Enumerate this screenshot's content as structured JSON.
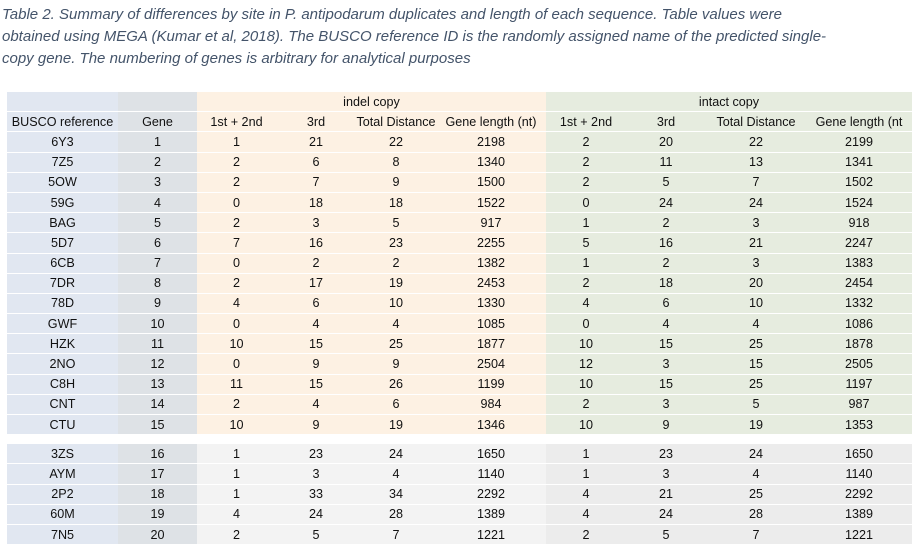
{
  "caption": {
    "line1": "Table 2. Summary of differences by site in P. antipodarum duplicates and length of each sequence. Table values were",
    "line2": "obtained using MEGA (Kumar et al, 2018). The BUSCO reference ID is the randomly assigned name of the predicted single-",
    "line3": "copy gene. The numbering of genes is arbitrary for analytical purposes"
  },
  "table": {
    "group_headers": {
      "indel": "indel copy",
      "intact": "intact copy"
    },
    "columns": [
      "BUSCO reference",
      "Gene",
      "1st + 2nd",
      "3rd",
      "Total Distance",
      "Gene length (nt)",
      "1st + 2nd",
      "3rd",
      "Total Distance",
      "Gene length (nt"
    ],
    "rows_a": [
      [
        "6Y3",
        "1",
        "1",
        "21",
        "22",
        "2198",
        "2",
        "20",
        "22",
        "2199"
      ],
      [
        "7Z5",
        "2",
        "2",
        "6",
        "8",
        "1340",
        "2",
        "11",
        "13",
        "1341"
      ],
      [
        "5OW",
        "3",
        "2",
        "7",
        "9",
        "1500",
        "2",
        "5",
        "7",
        "1502"
      ],
      [
        "59G",
        "4",
        "0",
        "18",
        "18",
        "1522",
        "0",
        "24",
        "24",
        "1524"
      ],
      [
        "BAG",
        "5",
        "2",
        "3",
        "5",
        "917",
        "1",
        "2",
        "3",
        "918"
      ],
      [
        "5D7",
        "6",
        "7",
        "16",
        "23",
        "2255",
        "5",
        "16",
        "21",
        "2247"
      ],
      [
        "6CB",
        "7",
        "0",
        "2",
        "2",
        "1382",
        "1",
        "2",
        "3",
        "1383"
      ],
      [
        "7DR",
        "8",
        "2",
        "17",
        "19",
        "2453",
        "2",
        "18",
        "20",
        "2454"
      ],
      [
        "78D",
        "9",
        "4",
        "6",
        "10",
        "1330",
        "4",
        "6",
        "10",
        "1332"
      ],
      [
        "GWF",
        "10",
        "0",
        "4",
        "4",
        "1085",
        "0",
        "4",
        "4",
        "1086"
      ],
      [
        "HZK",
        "11",
        "10",
        "15",
        "25",
        "1877",
        "10",
        "15",
        "25",
        "1878"
      ],
      [
        "2NO",
        "12",
        "0",
        "9",
        "9",
        "2504",
        "12",
        "3",
        "15",
        "2505"
      ],
      [
        "C8H",
        "13",
        "11",
        "15",
        "26",
        "1199",
        "10",
        "15",
        "25",
        "1197"
      ],
      [
        "CNT",
        "14",
        "2",
        "4",
        "6",
        "984",
        "2",
        "3",
        "5",
        "987"
      ],
      [
        "CTU",
        "15",
        "10",
        "9",
        "19",
        "1346",
        "10",
        "9",
        "19",
        "1353"
      ]
    ],
    "rows_b": [
      [
        "3ZS",
        "16",
        "1",
        "23",
        "24",
        "1650",
        "1",
        "23",
        "24",
        "1650"
      ],
      [
        "AYM",
        "17",
        "1",
        "3",
        "4",
        "1140",
        "1",
        "3",
        "4",
        "1140"
      ],
      [
        "2P2",
        "18",
        "1",
        "33",
        "34",
        "2292",
        "4",
        "21",
        "25",
        "2292"
      ],
      [
        "60M",
        "19",
        "4",
        "24",
        "28",
        "1389",
        "4",
        "24",
        "28",
        "1389"
      ],
      [
        "7N5",
        "20",
        "2",
        "5",
        "7",
        "1221",
        "2",
        "5",
        "7",
        "1221"
      ]
    ]
  }
}
